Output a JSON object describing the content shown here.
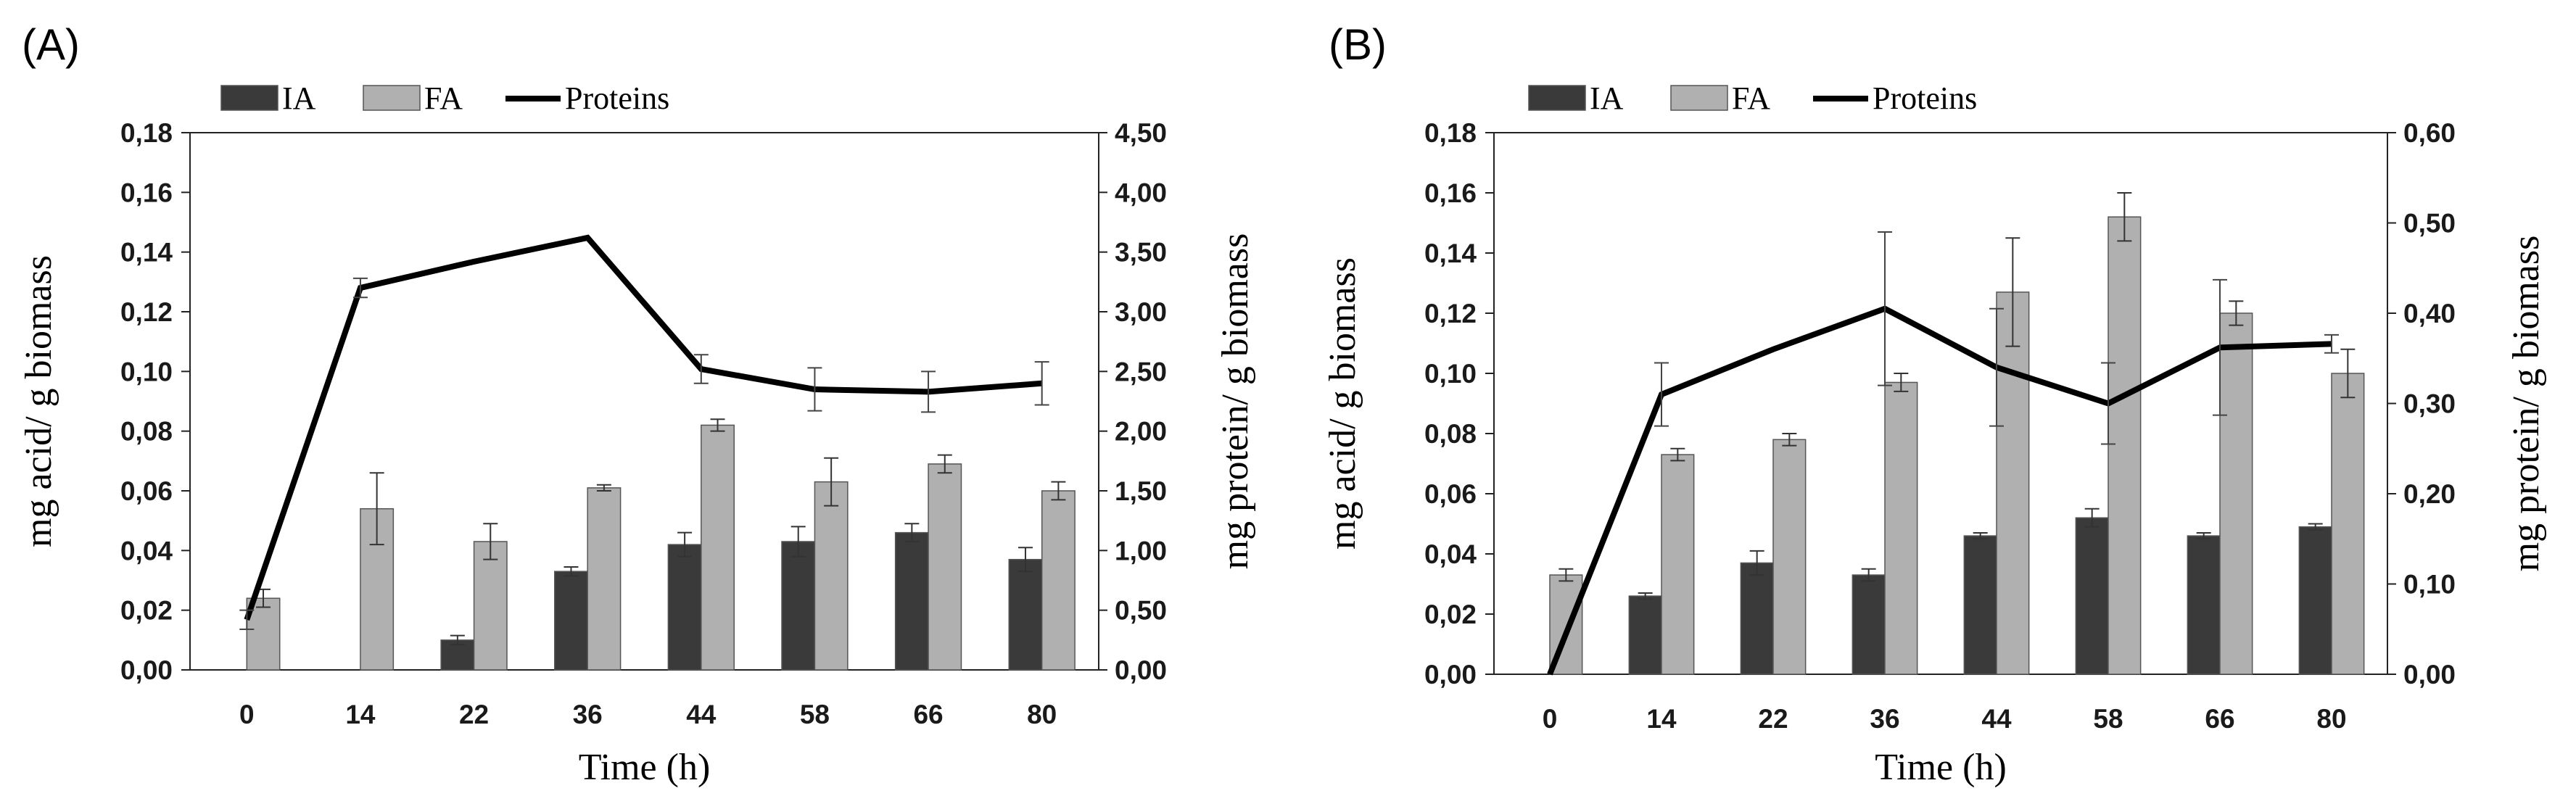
{
  "chart_data": [
    {
      "panel_label": "(A)",
      "type": "bar",
      "categories": [
        "0",
        "14",
        "22",
        "36",
        "44",
        "58",
        "66",
        "80"
      ],
      "series": [
        {
          "name": "IA",
          "kind": "bar",
          "axis": "left",
          "color": "#3a3a3a",
          "values": [
            null,
            null,
            0.01,
            0.033,
            0.042,
            0.043,
            0.046,
            0.037
          ],
          "errors": [
            null,
            null,
            0.0015,
            0.0015,
            0.004,
            0.005,
            0.003,
            0.004
          ]
        },
        {
          "name": "FA",
          "kind": "bar",
          "axis": "left",
          "color": "#b0b0b0",
          "values": [
            0.024,
            0.054,
            0.043,
            0.061,
            0.082,
            0.063,
            0.069,
            0.06
          ],
          "errors": [
            0.003,
            0.012,
            0.006,
            0.001,
            0.002,
            0.008,
            0.003,
            0.003
          ]
        },
        {
          "name": "Proteins",
          "kind": "line",
          "axis": "right",
          "color": "#000000",
          "values": [
            0.42,
            3.2,
            3.42,
            3.62,
            2.52,
            2.35,
            2.33,
            2.4
          ],
          "errors": [
            0.08,
            0.08,
            null,
            null,
            0.12,
            0.18,
            0.17,
            0.18
          ]
        }
      ],
      "xlabel": "Time  (h)",
      "ylabel": "mg acid/ g biomass",
      "y2label": "mg protein/ g biomass",
      "ylim": [
        0,
        0.18
      ],
      "y2lim": [
        0,
        4.5
      ],
      "yticks": [
        "0,00",
        "0,02",
        "0,04",
        "0,06",
        "0,08",
        "0,10",
        "0,12",
        "0,14",
        "0,16",
        "0,18"
      ],
      "y2ticks": [
        "0,00",
        "0,50",
        "1,00",
        "1,50",
        "2,00",
        "2,50",
        "3,00",
        "3,50",
        "4,00",
        "4,50"
      ],
      "legend": [
        "IA",
        "FA",
        "Proteins"
      ],
      "legend_position": "top"
    },
    {
      "panel_label": "(B)",
      "type": "bar",
      "categories": [
        "0",
        "14",
        "22",
        "36",
        "44",
        "58",
        "66",
        "80"
      ],
      "series": [
        {
          "name": "IA",
          "kind": "bar",
          "axis": "left",
          "color": "#3a3a3a",
          "values": [
            null,
            0.026,
            0.037,
            0.033,
            0.046,
            0.052,
            0.046,
            0.049
          ],
          "errors": [
            null,
            0.001,
            0.004,
            0.002,
            0.001,
            0.003,
            0.001,
            0.001
          ]
        },
        {
          "name": "FA",
          "kind": "bar",
          "axis": "left",
          "color": "#b0b0b0",
          "values": [
            0.033,
            0.073,
            0.078,
            0.097,
            0.127,
            0.152,
            0.12,
            0.1
          ],
          "errors": [
            0.002,
            0.002,
            0.002,
            0.003,
            0.018,
            0.008,
            0.004,
            0.008
          ]
        },
        {
          "name": "Proteins",
          "kind": "line",
          "axis": "right",
          "color": "#000000",
          "values": [
            0.0,
            0.31,
            0.36,
            0.405,
            0.34,
            0.3,
            0.362,
            0.366
          ],
          "errors": [
            null,
            0.035,
            null,
            0.085,
            0.065,
            0.045,
            0.075,
            0.01
          ]
        }
      ],
      "xlabel": "Time  (h)",
      "ylabel": "mg acid/ g biomass",
      "y2label": "mg protein/ g biomass",
      "ylim": [
        0,
        0.18
      ],
      "y2lim": [
        0,
        0.6
      ],
      "yticks": [
        "0,00",
        "0,02",
        "0,04",
        "0,06",
        "0,08",
        "0,10",
        "0,12",
        "0,14",
        "0,16",
        "0,18"
      ],
      "y2ticks": [
        "0,00",
        "0,10",
        "0,20",
        "0,30",
        "0,40",
        "0,50",
        "0,60"
      ],
      "legend": [
        "IA",
        "FA",
        "Proteins"
      ],
      "legend_position": "top"
    }
  ]
}
